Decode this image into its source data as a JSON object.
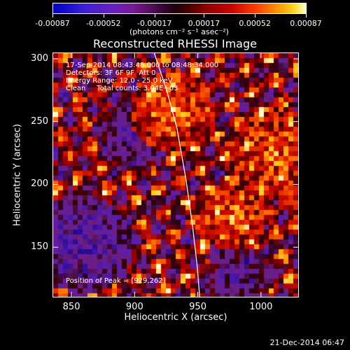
{
  "colorbar": {
    "tick_labels": [
      "-0.00087",
      "-0.00052",
      "-0.00017",
      "0.00017",
      "0.00052",
      "0.00087"
    ],
    "tick_values": [
      -0.00087,
      -0.00052,
      -0.00017,
      0.00017,
      0.00052,
      0.00087
    ],
    "units": "(photons cm⁻² s⁻¹ asec⁻²)"
  },
  "title": "Reconstructed RHESSI Image",
  "info": {
    "line1": "17-Sep-2014 08:43:48.000 to 08:48:34.000",
    "line2": "Detectors: 3F 6F 9F  Att 0",
    "line3": "Energy Range: 12.0 - 25.0 keV",
    "line4": "Clean     Total counts: 3.04E+03"
  },
  "peak_label": "Position of Peak = [929,262]",
  "x_axis": {
    "label": "Heliocentric X (arcsec)",
    "ticks": [
      "850",
      "900",
      "950",
      "1000"
    ],
    "tick_values": [
      850,
      900,
      950,
      1000
    ],
    "range": [
      835,
      1030
    ]
  },
  "y_axis": {
    "label": "Heliocentric Y (arcsec)",
    "ticks": [
      "150",
      "200",
      "250",
      "300"
    ],
    "tick_values": [
      150,
      200,
      250,
      300
    ],
    "range": [
      110,
      305
    ]
  },
  "limb": {
    "points": [
      [
        915,
        305
      ],
      [
        925,
        275
      ],
      [
        933,
        245
      ],
      [
        940,
        205
      ],
      [
        945,
        170
      ],
      [
        949,
        135
      ],
      [
        951,
        110
      ]
    ]
  },
  "timestamp": "21-Dec-2014 06:47",
  "colors": {
    "background": "#000000",
    "axis": "#ffffff"
  },
  "chart_data": {
    "type": "heatmap",
    "title": "Reconstructed RHESSI Image",
    "xlabel": "Heliocentric X (arcsec)",
    "ylabel": "Heliocentric Y (arcsec)",
    "xlim": [
      835,
      1030
    ],
    "ylim": [
      110,
      305
    ],
    "colorbar_range": [
      -0.00087,
      0.00087
    ],
    "peak": [
      929,
      262
    ]
  }
}
